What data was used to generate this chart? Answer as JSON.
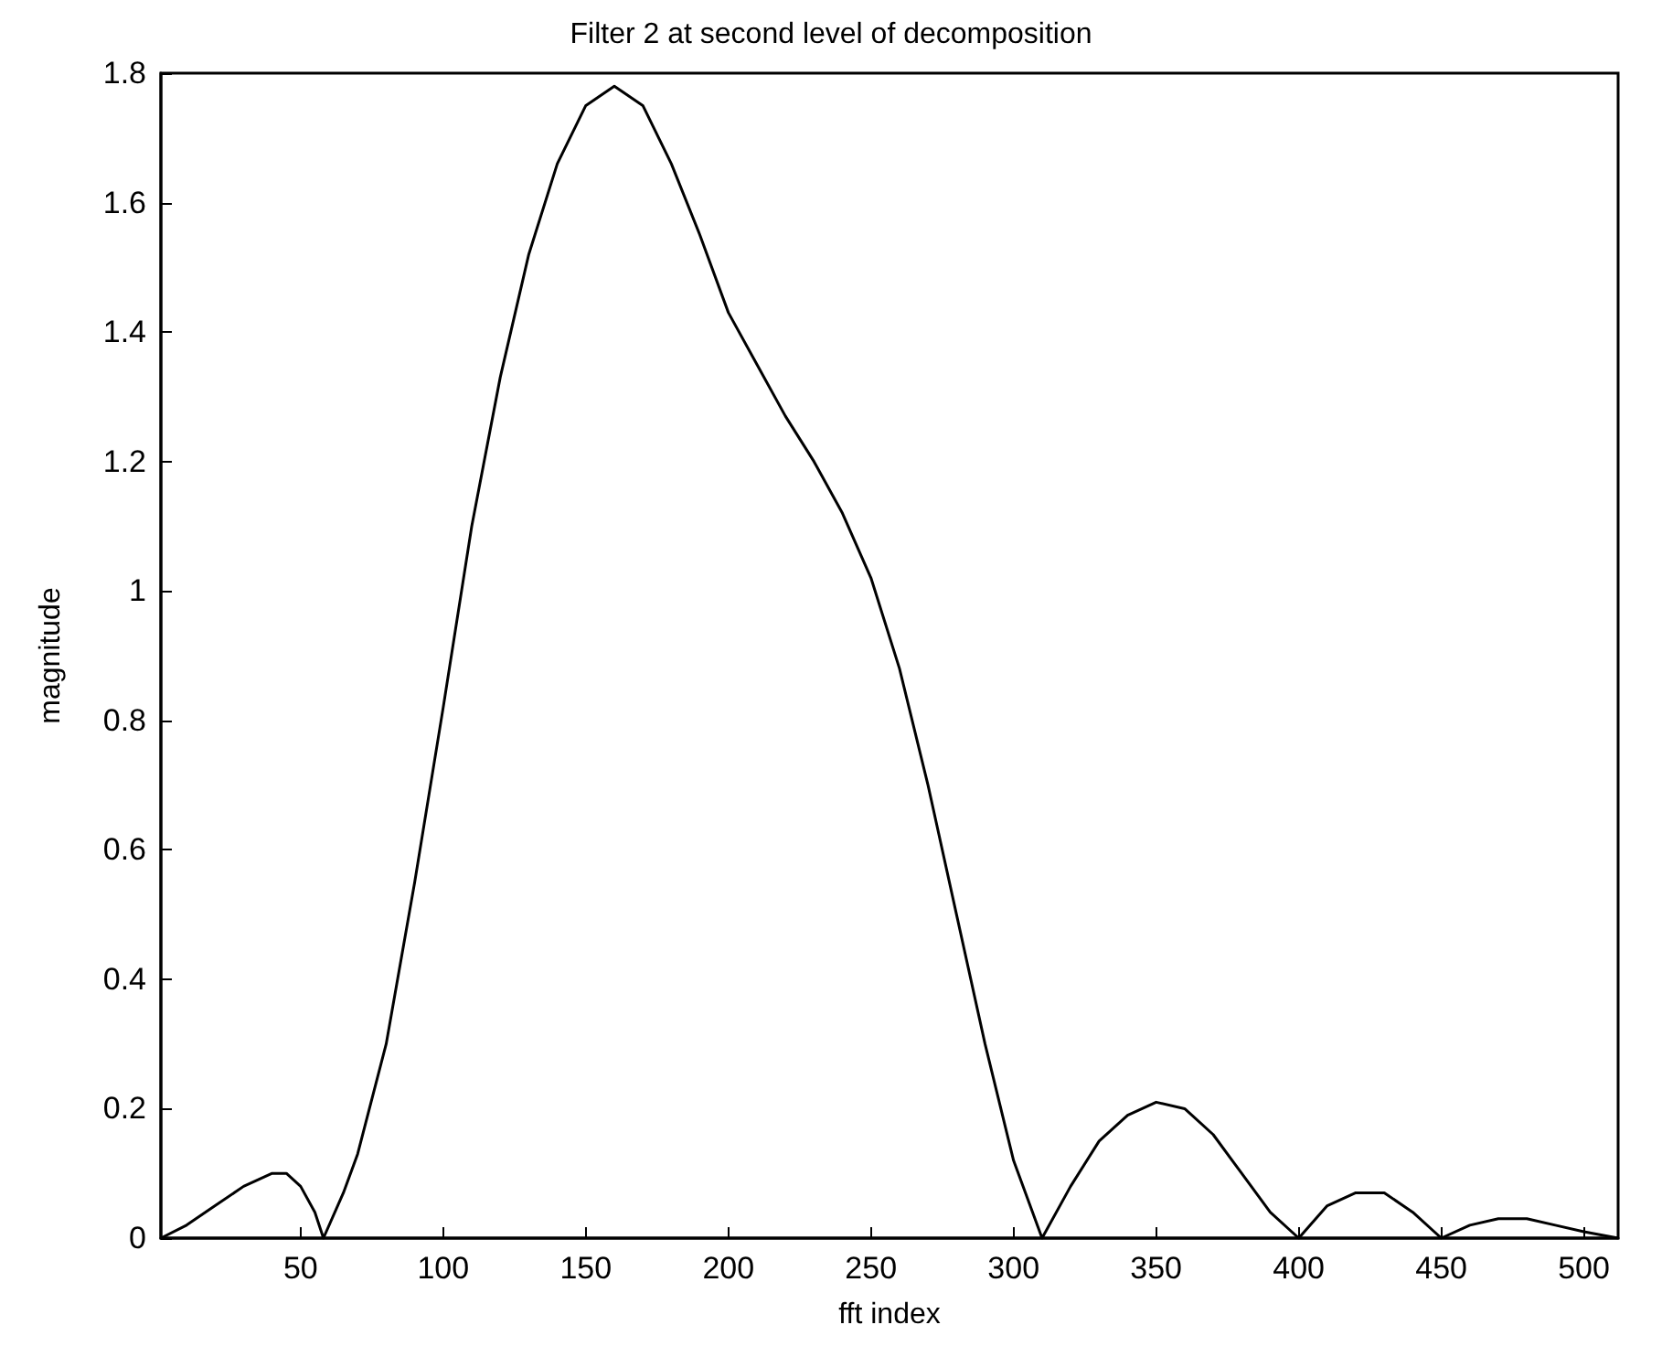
{
  "chart_data": {
    "type": "line",
    "title": "Filter 2 at second level of decomposition",
    "xlabel": "fft index",
    "ylabel": "magnitude",
    "x": [
      1,
      10,
      20,
      30,
      40,
      45,
      50,
      55,
      58,
      65,
      70,
      80,
      90,
      100,
      110,
      120,
      130,
      140,
      150,
      160,
      170,
      180,
      190,
      200,
      210,
      220,
      230,
      240,
      250,
      260,
      270,
      280,
      290,
      300,
      310,
      320,
      330,
      340,
      350,
      360,
      370,
      380,
      390,
      400,
      410,
      420,
      430,
      440,
      450,
      460,
      470,
      480,
      490,
      500,
      512
    ],
    "series": [
      {
        "color": "#000000",
        "values": [
          0,
          0.02,
          0.05,
          0.08,
          0.1,
          0.1,
          0.08,
          0.04,
          0,
          0.07,
          0.13,
          0.3,
          0.55,
          0.82,
          1.1,
          1.33,
          1.52,
          1.66,
          1.75,
          1.78,
          1.75,
          1.66,
          1.55,
          1.43,
          1.35,
          1.27,
          1.2,
          1.12,
          1.02,
          0.88,
          0.7,
          0.5,
          0.3,
          0.12,
          0,
          0.08,
          0.15,
          0.19,
          0.21,
          0.2,
          0.16,
          0.1,
          0.04,
          0,
          0.05,
          0.07,
          0.07,
          0.04,
          0,
          0.02,
          0.03,
          0.03,
          0.02,
          0.01,
          0
        ]
      }
    ],
    "xlim": [
      1,
      512
    ],
    "xticks": [
      50,
      100,
      150,
      200,
      250,
      300,
      350,
      400,
      450,
      500
    ],
    "ylim": [
      0,
      1.8
    ],
    "yticks": [
      0,
      0.2,
      0.4,
      0.6,
      0.8,
      1,
      1.2,
      1.4,
      1.6,
      1.8
    ],
    "grid": false,
    "marker": "none",
    "line_style": "solid"
  }
}
